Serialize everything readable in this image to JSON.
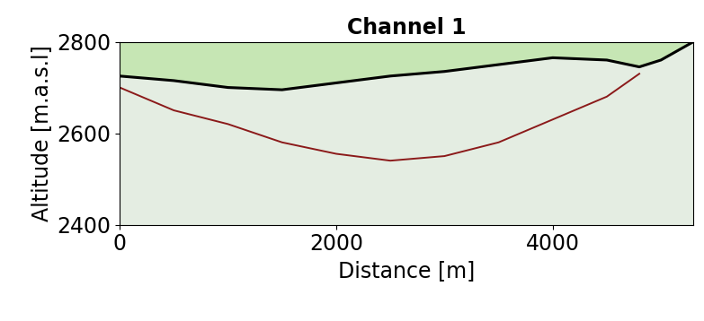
{
  "chart_data": {
    "type": "line",
    "title": "Channel 1",
    "x_label": "Distance [m]",
    "y_label": "Altitude [m.a.s.l]",
    "x": [
      0,
      500,
      1000,
      1500,
      2000,
      2500,
      3000,
      3500,
      4000,
      4500,
      4800,
      5000,
      5300
    ],
    "series": [
      {
        "color": "#000000",
        "line_style": "solid",
        "values": [
          2725,
          2715,
          2700,
          2695,
          2710,
          2725,
          2735,
          2750,
          2765,
          2760,
          2745,
          2760,
          2800
        ]
      },
      {
        "color": "#8b1a1a",
        "line_style": "solid",
        "values": [
          2700,
          2650,
          2620,
          2580,
          2555,
          2540,
          2550,
          2580,
          2630,
          2680,
          2730,
          null,
          null
        ]
      }
    ],
    "xlim": [
      0,
      5300
    ],
    "ylim": [
      2400,
      2800
    ],
    "xticks": [
      0,
      2000,
      4000
    ],
    "yticks": [
      2400,
      2600,
      2800
    ],
    "grid": false
  }
}
